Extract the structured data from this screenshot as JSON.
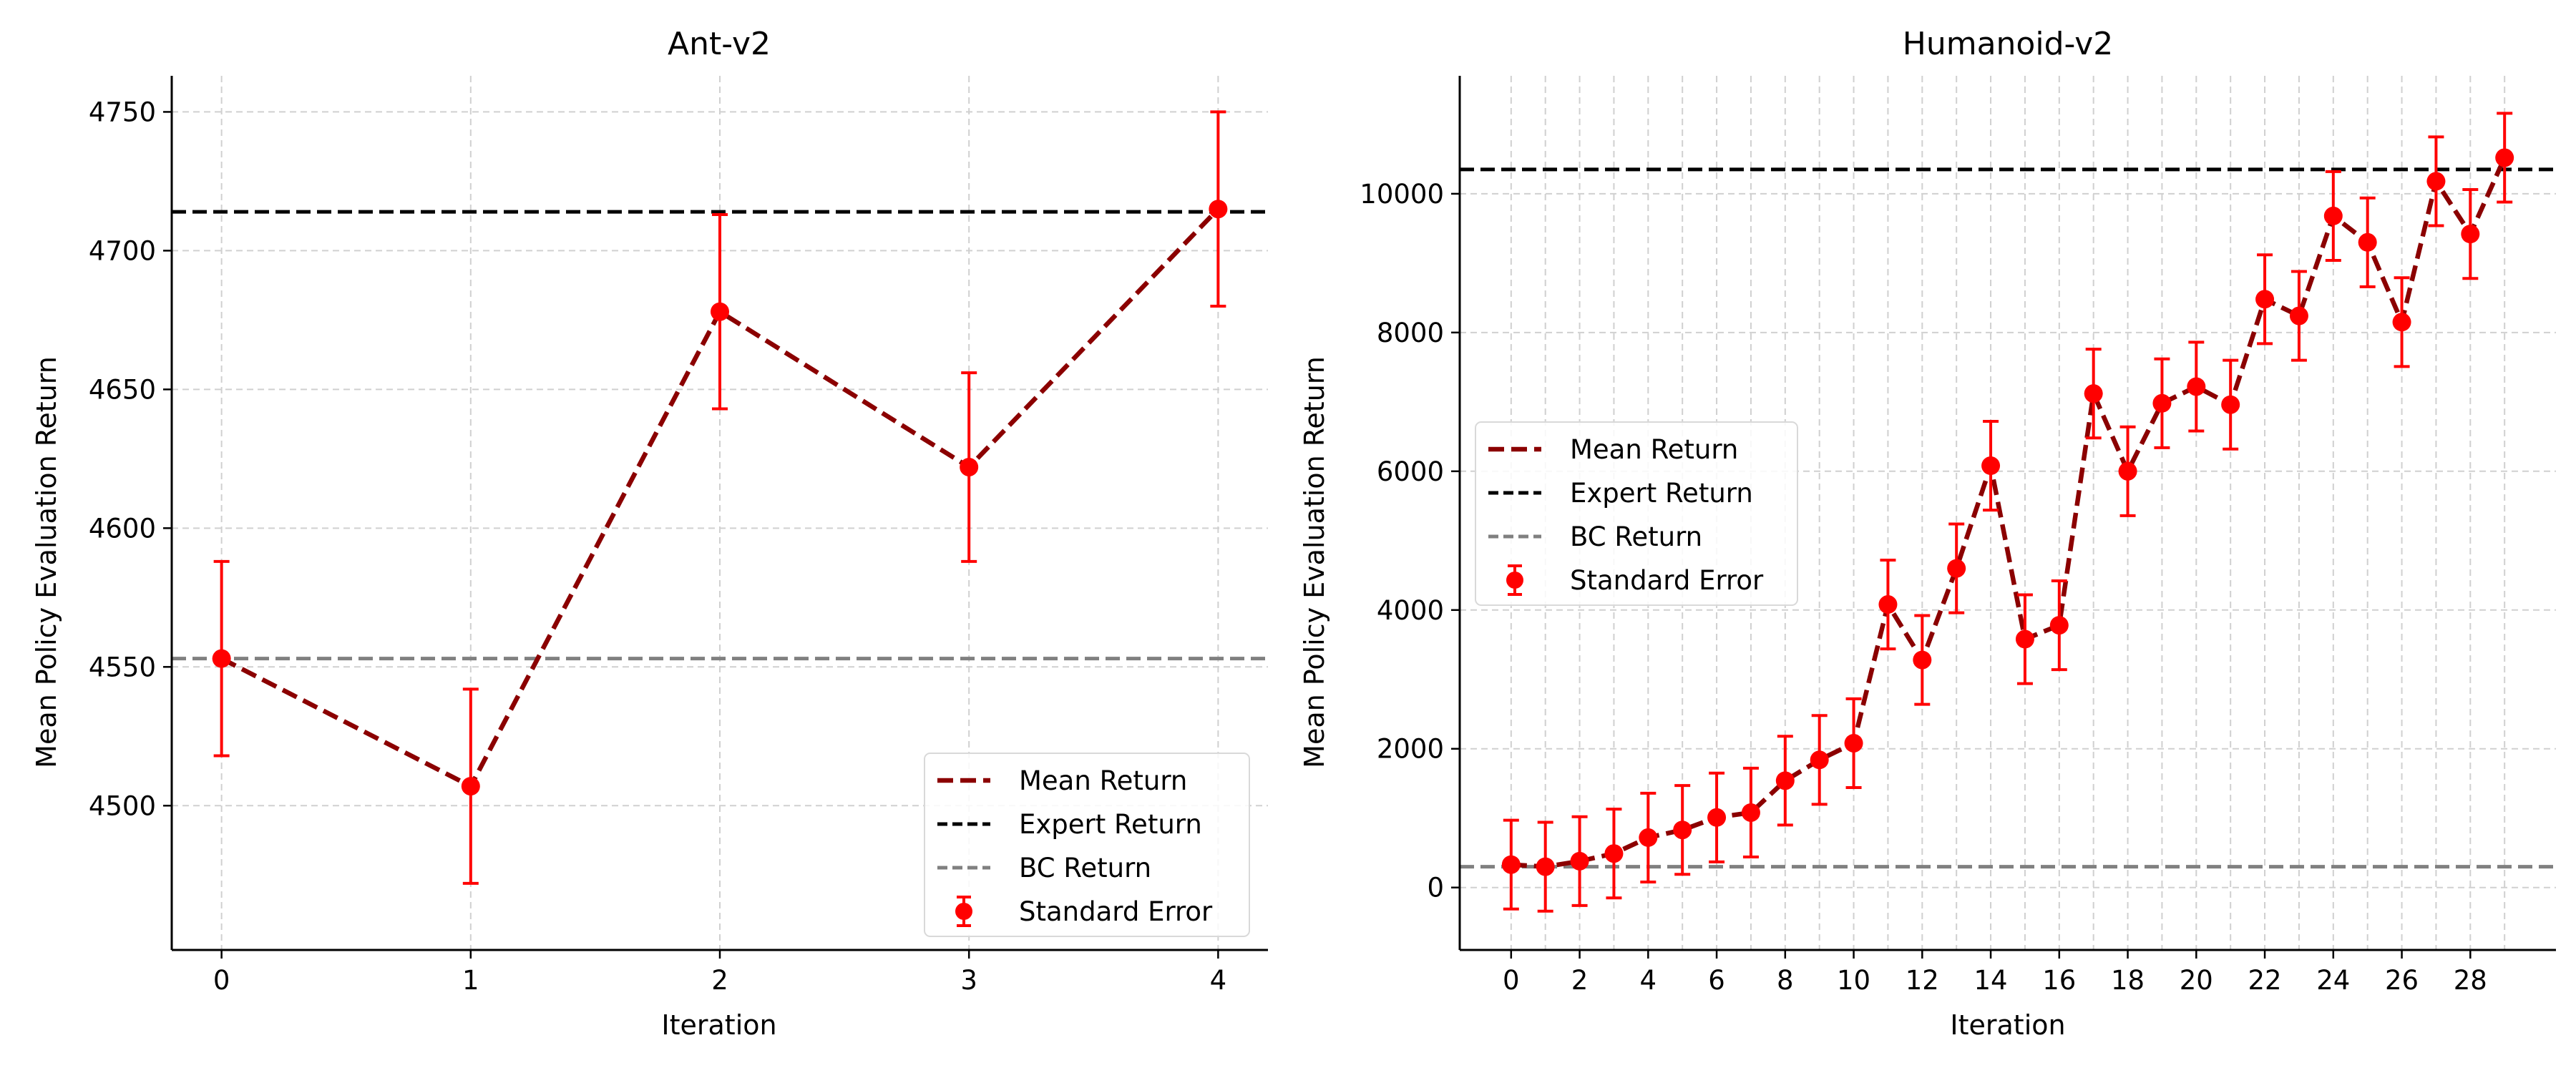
{
  "chart_data": [
    {
      "type": "line",
      "title": "Ant-v2",
      "xlabel": "Iteration",
      "ylabel": "Mean Policy Evaluation Return",
      "xlim": [
        -0.2,
        4.2
      ],
      "ylim": [
        4448,
        4763
      ],
      "xticks": [
        0,
        1,
        2,
        3,
        4
      ],
      "yticks": [
        4500,
        4550,
        4600,
        4650,
        4700,
        4750
      ],
      "grid": true,
      "legend_position": "lower right",
      "x": [
        0,
        1,
        2,
        3,
        4
      ],
      "series": [
        {
          "name": "Mean Return",
          "style": "dashed",
          "color": "#8b0000",
          "values": [
            4553,
            4507,
            4678,
            4622,
            4715
          ]
        },
        {
          "name": "Standard Error",
          "style": "errorbar",
          "color": "#ff0000",
          "values": [
            4553,
            4507,
            4678,
            4622,
            4715
          ],
          "errors": [
            35,
            35,
            35,
            34,
            35
          ]
        }
      ],
      "reference_lines": [
        {
          "name": "Expert Return",
          "value": 4714,
          "style": "dashed",
          "color": "#000000"
        },
        {
          "name": "BC Return",
          "value": 4553,
          "style": "dashed",
          "color": "#808080"
        }
      ]
    },
    {
      "type": "line",
      "title": "Humanoid-v2",
      "xlabel": "Iteration",
      "ylabel": "Mean Policy Evaluation Return",
      "xlim": [
        -1.5,
        30.5
      ],
      "ylim": [
        -900,
        11700
      ],
      "xticks": [
        0,
        2,
        4,
        6,
        8,
        10,
        12,
        14,
        16,
        18,
        20,
        22,
        24,
        26,
        28
      ],
      "xgrid": [
        0,
        1,
        2,
        3,
        4,
        5,
        6,
        7,
        8,
        9,
        10,
        11,
        12,
        13,
        14,
        15,
        16,
        17,
        18,
        19,
        20,
        21,
        22,
        23,
        24,
        25,
        26,
        27,
        28,
        29
      ],
      "yticks": [
        0,
        2000,
        4000,
        6000,
        8000,
        10000
      ],
      "grid": true,
      "legend_position": "center left",
      "x": [
        0,
        1,
        2,
        3,
        4,
        5,
        6,
        7,
        8,
        9,
        10,
        11,
        12,
        13,
        14,
        15,
        16,
        17,
        18,
        19,
        20,
        21,
        22,
        23,
        24,
        25,
        26,
        27,
        28,
        29
      ],
      "series": [
        {
          "name": "Mean Return",
          "style": "dashed",
          "color": "#8b0000",
          "values": [
            330,
            300,
            380,
            490,
            720,
            830,
            1010,
            1080,
            1540,
            1840,
            2080,
            4080,
            3280,
            4600,
            6080,
            3580,
            3780,
            7120,
            6000,
            6980,
            7220,
            6960,
            8480,
            8240,
            9680,
            9300,
            8150,
            10180,
            9420,
            10520
          ]
        },
        {
          "name": "Standard Error",
          "style": "errorbar",
          "color": "#ff0000",
          "values": [
            330,
            300,
            380,
            490,
            720,
            830,
            1010,
            1080,
            1540,
            1840,
            2080,
            4080,
            3280,
            4600,
            6080,
            3580,
            3780,
            7120,
            6000,
            6980,
            7220,
            6960,
            8480,
            8240,
            9680,
            9300,
            8150,
            10180,
            9420,
            10520
          ],
          "errors": [
            640,
            640,
            640,
            640,
            640,
            640,
            640,
            640,
            640,
            640,
            640,
            640,
            640,
            640,
            640,
            640,
            640,
            640,
            640,
            640,
            640,
            640,
            640,
            640,
            640,
            640,
            640,
            640,
            640,
            640
          ]
        }
      ],
      "reference_lines": [
        {
          "name": "Expert Return",
          "value": 10350,
          "style": "dashed",
          "color": "#000000"
        },
        {
          "name": "BC Return",
          "value": 300,
          "style": "dashed",
          "color": "#808080"
        }
      ]
    }
  ]
}
